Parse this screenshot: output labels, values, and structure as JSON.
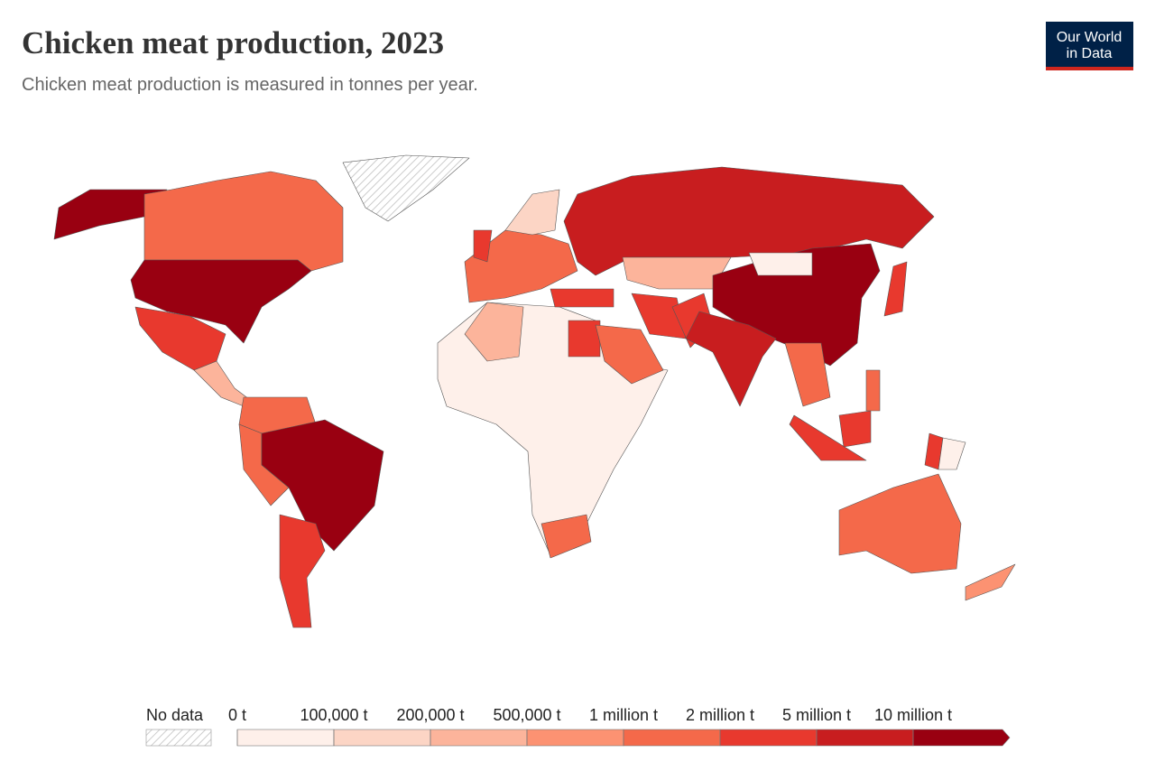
{
  "header": {
    "title": "Chicken meat production, 2023",
    "subtitle": "Chicken meat production is measured in tonnes per year.",
    "logo": [
      "Our World",
      "in Data"
    ]
  },
  "legend": {
    "no_data": "No data",
    "ticks": [
      {
        "value": 0,
        "label": "0 t"
      },
      {
        "value": 100000,
        "label": "100,000 t"
      },
      {
        "value": 200000,
        "label": "200,000 t"
      },
      {
        "value": 500000,
        "label": "500,000 t"
      },
      {
        "value": 1000000,
        "label": "1 million t"
      },
      {
        "value": 2000000,
        "label": "2 million t"
      },
      {
        "value": 5000000,
        "label": "5 million t"
      },
      {
        "value": 10000000,
        "label": "10 million t"
      }
    ],
    "colors": [
      "#fef0ea",
      "#fcd5c5",
      "#fcb49b",
      "#fc9272",
      "#f4694a",
      "#e8392e",
      "#c81d1f",
      "#990011"
    ]
  }
}
